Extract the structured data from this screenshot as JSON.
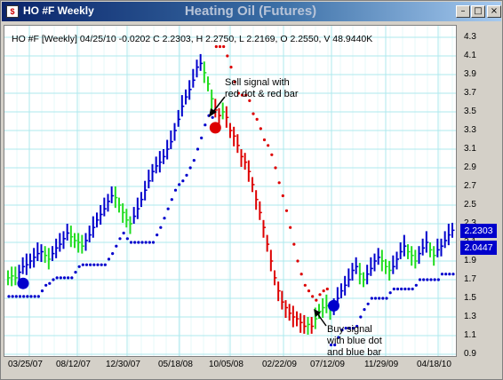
{
  "window": {
    "title": "HO #F Weekly",
    "icon_label": "$",
    "buttons": {
      "minimize": "–",
      "maximize": "□",
      "close": "×"
    }
  },
  "chart_data": {
    "type": "bar",
    "title": "Heating Oil (Futures)",
    "info_line": "HO #F [Weekly] 04/25/10 -0.0202 C 2.2303, H 2.2750, L 2.2169, O 2.2550, V 48.9440K",
    "ylim": [
      0.9,
      4.3
    ],
    "y_ticks": [
      "4.3",
      "4.1",
      "3.9",
      "3.7",
      "3.5",
      "3.3",
      "3.1",
      "2.9",
      "2.7",
      "2.5",
      "2.3",
      "2.1",
      "1.9",
      "1.7",
      "1.5",
      "1.3",
      "1.1",
      "0.9"
    ],
    "x_ticks": [
      "03/25/07",
      "08/12/07",
      "12/30/07",
      "05/18/08",
      "10/05/08",
      "02/22/09",
      "07/12/09",
      "11/29/09",
      "04/18/10"
    ],
    "price_labels": {
      "close": "2.2303",
      "stop": "2.0447"
    },
    "colors": {
      "up": "#0000cc",
      "neutral": "#22dd22",
      "down": "#dd0000",
      "grid": "#aee8ee"
    },
    "series": [
      {
        "name": "price",
        "values": [
          1.72,
          1.74,
          1.72,
          1.78,
          1.84,
          1.86,
          1.9,
          1.94,
          1.98,
          2.0,
          1.96,
          1.92,
          1.98,
          2.04,
          2.08,
          2.14,
          2.2,
          2.16,
          2.12,
          2.1,
          2.06,
          2.12,
          2.18,
          2.26,
          2.34,
          2.4,
          2.46,
          2.54,
          2.6,
          2.58,
          2.5,
          2.42,
          2.34,
          2.3,
          2.38,
          2.46,
          2.56,
          2.66,
          2.76,
          2.86,
          2.92,
          2.96,
          3.02,
          3.1,
          3.18,
          3.3,
          3.42,
          3.56,
          3.66,
          3.74,
          3.84,
          3.98,
          4.02,
          3.92,
          3.8,
          3.64,
          3.52,
          3.46,
          3.5,
          3.44,
          3.3,
          3.24,
          3.14,
          3.02,
          2.96,
          2.86,
          2.72,
          2.56,
          2.42,
          2.26,
          2.08,
          1.9,
          1.72,
          1.58,
          1.46,
          1.4,
          1.34,
          1.3,
          1.28,
          1.24,
          1.2,
          1.22,
          1.2,
          1.28,
          1.36,
          1.4,
          1.42,
          1.38,
          1.4,
          1.5,
          1.58,
          1.64,
          1.7,
          1.8,
          1.84,
          1.76,
          1.7,
          1.76,
          1.82,
          1.9,
          1.94,
          1.9,
          1.84,
          1.8,
          1.84,
          1.92,
          2.0,
          2.06,
          2.0,
          1.96,
          1.9,
          1.98,
          2.04,
          2.1,
          2.02,
          1.96,
          2.02,
          2.06,
          2.12,
          2.18,
          2.23
        ]
      }
    ],
    "annotations": {
      "sell": "Sell signal with\nred dot & red bar",
      "buy": "Buy signal\nwith blue dot\nand blue bar"
    }
  }
}
